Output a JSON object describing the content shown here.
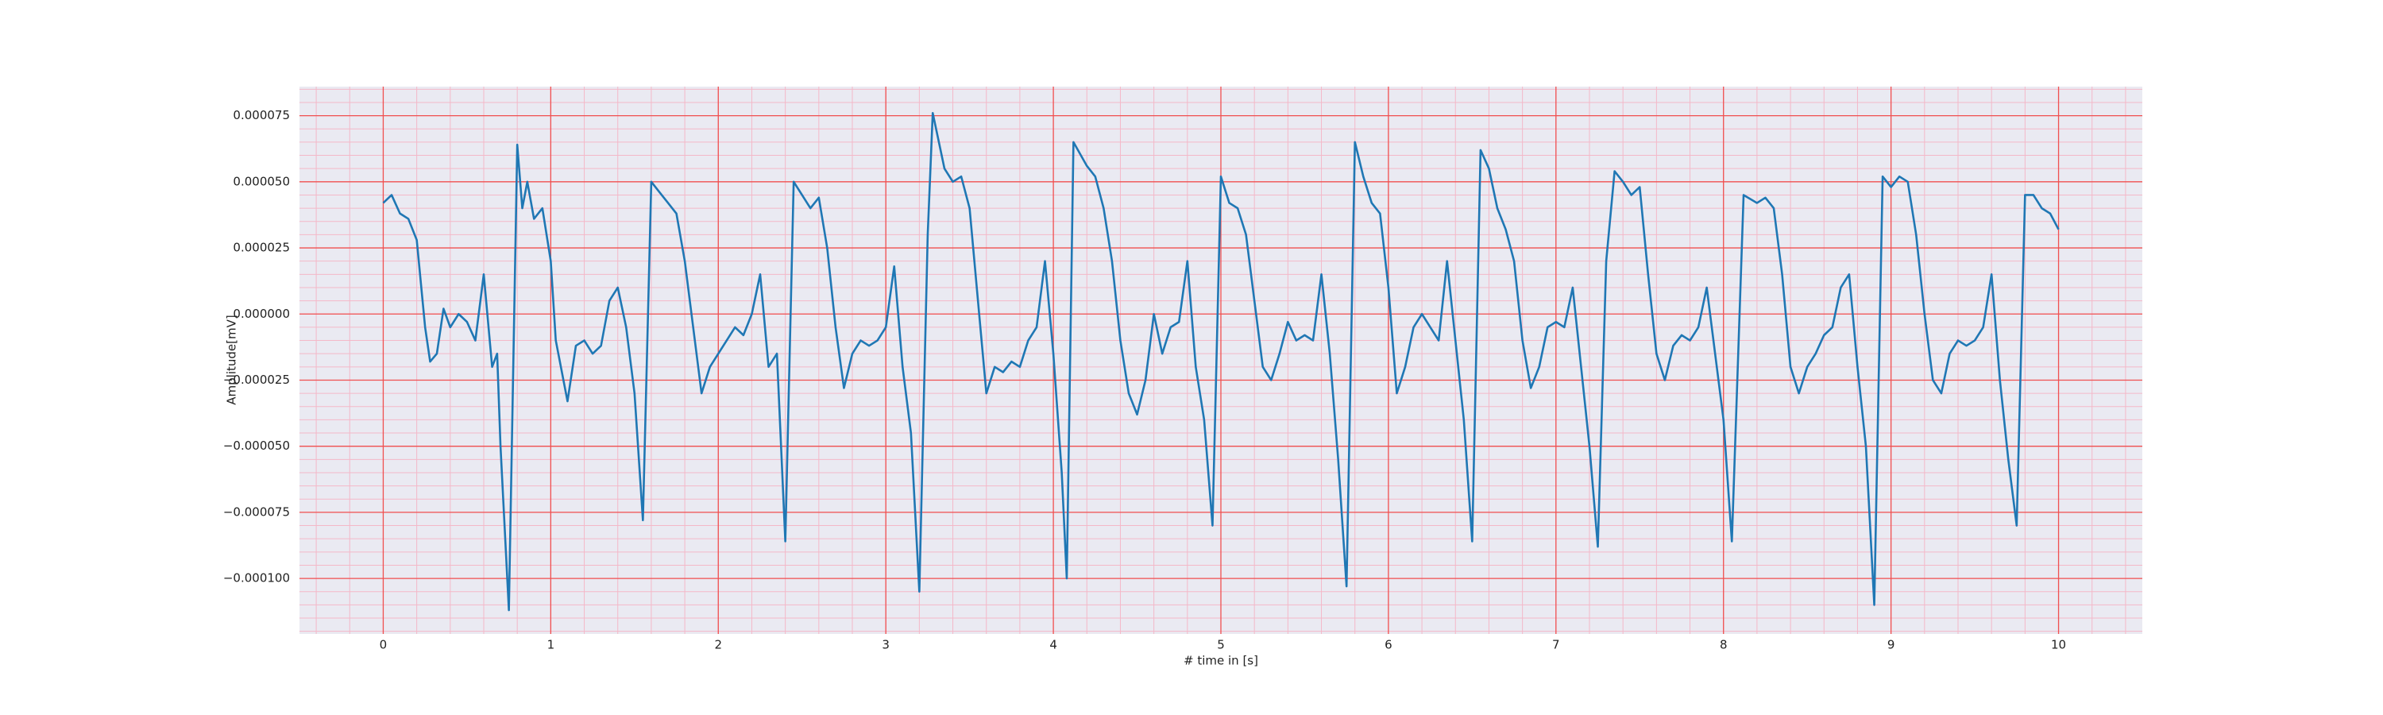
{
  "chart_data": {
    "type": "line",
    "xlabel": "# time in [s]",
    "ylabel": "Amplitude[mV]",
    "color": "#1f77b4",
    "grid": true,
    "minor_grid": true,
    "xlim": [
      -0.5,
      10.5
    ],
    "ylim": [
      -0.000121,
      8.6e-05
    ],
    "xticks": [
      0,
      1,
      2,
      3,
      4,
      5,
      6,
      7,
      8,
      9,
      10
    ],
    "yticks": [
      {
        "value": -0.0001,
        "label": "−0.000100"
      },
      {
        "value": -7.5e-05,
        "label": "−0.000075"
      },
      {
        "value": -5e-05,
        "label": "−0.000050"
      },
      {
        "value": -2.5e-05,
        "label": "−0.000025"
      },
      {
        "value": 0,
        "label": "0.000000"
      },
      {
        "value": 2.5e-05,
        "label": "0.000025"
      },
      {
        "value": 5e-05,
        "label": "0.000050"
      },
      {
        "value": 7.5e-05,
        "label": "0.000075"
      }
    ],
    "x": [
      0,
      0.05,
      0.1,
      0.15,
      0.2,
      0.25,
      0.28,
      0.32,
      0.36,
      0.4,
      0.45,
      0.5,
      0.55,
      0.6,
      0.65,
      0.68,
      0.7,
      0.75,
      0.8,
      0.83,
      0.86,
      0.9,
      0.95,
      1.0,
      1.03,
      1.1,
      1.15,
      1.2,
      1.25,
      1.3,
      1.35,
      1.4,
      1.45,
      1.5,
      1.55,
      1.6,
      1.65,
      1.7,
      1.75,
      1.8,
      1.85,
      1.9,
      1.95,
      2.0,
      2.05,
      2.1,
      2.15,
      2.2,
      2.25,
      2.3,
      2.35,
      2.4,
      2.45,
      2.5,
      2.55,
      2.6,
      2.65,
      2.7,
      2.75,
      2.8,
      2.85,
      2.9,
      2.95,
      3.0,
      3.05,
      3.1,
      3.15,
      3.2,
      3.25,
      3.28,
      3.35,
      3.4,
      3.45,
      3.5,
      3.55,
      3.6,
      3.65,
      3.7,
      3.75,
      3.8,
      3.85,
      3.9,
      3.95,
      4.0,
      4.05,
      4.08,
      4.12,
      4.2,
      4.25,
      4.3,
      4.35,
      4.4,
      4.45,
      4.5,
      4.55,
      4.6,
      4.65,
      4.7,
      4.75,
      4.8,
      4.85,
      4.9,
      4.95,
      5.0,
      5.05,
      5.1,
      5.15,
      5.2,
      5.25,
      5.3,
      5.35,
      5.4,
      5.45,
      5.5,
      5.55,
      5.6,
      5.65,
      5.7,
      5.75,
      5.8,
      5.85,
      5.9,
      5.95,
      6.0,
      6.05,
      6.1,
      6.15,
      6.2,
      6.25,
      6.3,
      6.35,
      6.4,
      6.45,
      6.5,
      6.55,
      6.6,
      6.65,
      6.7,
      6.75,
      6.8,
      6.85,
      6.9,
      6.95,
      7.0,
      7.05,
      7.1,
      7.15,
      7.2,
      7.25,
      7.3,
      7.35,
      7.4,
      7.45,
      7.5,
      7.55,
      7.6,
      7.65,
      7.7,
      7.75,
      7.8,
      7.85,
      7.9,
      7.95,
      8.0,
      8.05,
      8.12,
      8.2,
      8.25,
      8.3,
      8.35,
      8.4,
      8.45,
      8.5,
      8.55,
      8.6,
      8.65,
      8.7,
      8.75,
      8.8,
      8.85,
      8.9,
      8.95,
      9.0,
      9.05,
      9.1,
      9.15,
      9.2,
      9.25,
      9.3,
      9.35,
      9.4,
      9.45,
      9.5,
      9.55,
      9.6,
      9.65,
      9.7,
      9.75,
      9.8,
      9.85,
      9.9,
      9.95,
      10.0
    ],
    "values": [
      4.2e-05,
      4.5e-05,
      3.8e-05,
      3.6e-05,
      2.8e-05,
      -5e-06,
      -1.8e-05,
      -1.5e-05,
      2e-06,
      -5e-06,
      0,
      -3e-06,
      -1e-05,
      1.5e-05,
      -2e-05,
      -1.5e-05,
      -5e-05,
      -0.000112,
      6.4e-05,
      4e-05,
      5e-05,
      3.6e-05,
      4e-05,
      2e-05,
      -1e-05,
      -3.3e-05,
      -1.2e-05,
      -1e-05,
      -1.5e-05,
      -1.2e-05,
      5e-06,
      1e-05,
      -5e-06,
      -3e-05,
      -7.8e-05,
      5e-05,
      4.6e-05,
      4.2e-05,
      3.8e-05,
      2e-05,
      -5e-06,
      -3e-05,
      -2e-05,
      -1.5e-05,
      -1e-05,
      -5e-06,
      -8e-06,
      0,
      1.5e-05,
      -2e-05,
      -1.5e-05,
      -8.6e-05,
      5e-05,
      4.5e-05,
      4e-05,
      4.4e-05,
      2.5e-05,
      -5e-06,
      -2.8e-05,
      -1.5e-05,
      -1e-05,
      -1.2e-05,
      -1e-05,
      -5e-06,
      1.8e-05,
      -2e-05,
      -4.5e-05,
      -0.000105,
      3e-05,
      7.6e-05,
      5.5e-05,
      5e-05,
      5.2e-05,
      4e-05,
      5e-06,
      -3e-05,
      -2e-05,
      -2.2e-05,
      -1.8e-05,
      -2e-05,
      -1e-05,
      -5e-06,
      2e-05,
      -1.5e-05,
      -6e-05,
      -0.0001,
      6.5e-05,
      5.6e-05,
      5.2e-05,
      4e-05,
      2e-05,
      -1e-05,
      -3e-05,
      -3.8e-05,
      -2.5e-05,
      0,
      -1.5e-05,
      -5e-06,
      -3e-06,
      2e-05,
      -2e-05,
      -4e-05,
      -8e-05,
      5.2e-05,
      4.2e-05,
      4e-05,
      3e-05,
      5e-06,
      -2e-05,
      -2.5e-05,
      -1.5e-05,
      -3e-06,
      -1e-05,
      -8e-06,
      -1e-05,
      1.5e-05,
      -1.5e-05,
      -5.5e-05,
      -0.000103,
      6.5e-05,
      5.2e-05,
      4.2e-05,
      3.8e-05,
      1e-05,
      -3e-05,
      -2e-05,
      -5e-06,
      0,
      -5e-06,
      -1e-05,
      2e-05,
      -1e-05,
      -4e-05,
      -8.6e-05,
      6.2e-05,
      5.5e-05,
      4e-05,
      3.2e-05,
      2e-05,
      -1e-05,
      -2.8e-05,
      -2e-05,
      -5e-06,
      -3e-06,
      -5e-06,
      1e-05,
      -2e-05,
      -5e-05,
      -8.8e-05,
      2e-05,
      5.4e-05,
      5e-05,
      4.5e-05,
      4.8e-05,
      1.5e-05,
      -1.5e-05,
      -2.5e-05,
      -1.2e-05,
      -8e-06,
      -1e-05,
      -5e-06,
      1e-05,
      -1.5e-05,
      -4e-05,
      -8.6e-05,
      4.5e-05,
      4.2e-05,
      4.4e-05,
      4e-05,
      1.5e-05,
      -2e-05,
      -3e-05,
      -2e-05,
      -1.5e-05,
      -8e-06,
      -5e-06,
      1e-05,
      1.5e-05,
      -2e-05,
      -5e-05,
      -0.00011,
      5.2e-05,
      4.8e-05,
      5.2e-05,
      5e-05,
      3e-05,
      0,
      -2.5e-05,
      -3e-05,
      -1.5e-05,
      -1e-05,
      -1.2e-05,
      -1e-05,
      -5e-06,
      1.5e-05,
      -2.5e-05,
      -5.5e-05,
      -8e-05,
      4.5e-05,
      4.5e-05,
      4e-05,
      3.8e-05,
      3.2e-05
    ]
  }
}
